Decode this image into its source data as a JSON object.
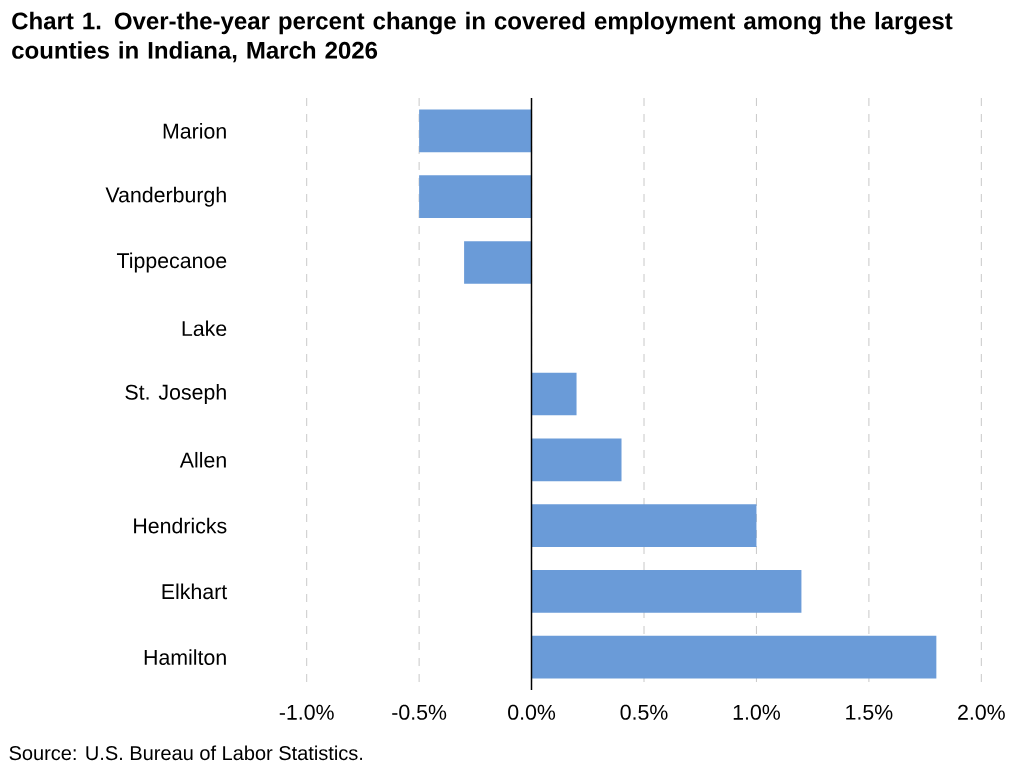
{
  "chart_data": {
    "type": "bar",
    "orientation": "horizontal",
    "title": "Chart 1. Over-the-year percent change in covered employment among the largest counties in Indiana, March 2026",
    "categories": [
      "Marion",
      "Vanderburgh",
      "Tippecanoe",
      "Lake",
      "St. Joseph",
      "Allen",
      "Hendricks",
      "Elkhart",
      "Hamilton"
    ],
    "values": [
      -0.5,
      -0.5,
      -0.3,
      0,
      0.2,
      0.4,
      1.0,
      1.2,
      1.8
    ],
    "color": "#6a9bd8",
    "xlim": [
      -1.0,
      2.0
    ],
    "xticks": [
      {
        "value": -1.0,
        "label": "-1.0%"
      },
      {
        "value": -0.5,
        "label": "-0.5%"
      },
      {
        "value": 0,
        "label": "0.0%"
      },
      {
        "value": 0.5,
        "label": "0.5%"
      },
      {
        "value": 1.0,
        "label": "1.0%"
      },
      {
        "value": 1.5,
        "label": "1.5%"
      },
      {
        "value": 2.0,
        "label": "2.0%"
      }
    ],
    "grid": "x",
    "annotations": [
      "Source: U.S. Bureau of Labor Statistics."
    ]
  }
}
